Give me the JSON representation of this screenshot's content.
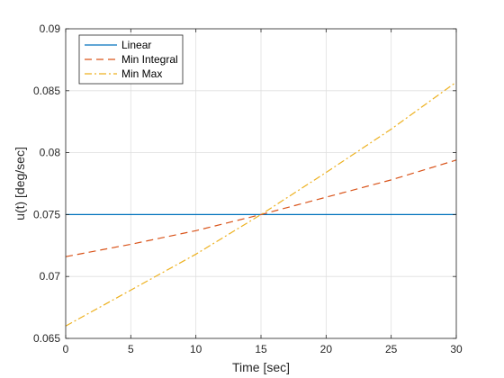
{
  "chart_data": {
    "type": "line",
    "title": "",
    "xlabel": "Time [sec]",
    "ylabel": "u(t) [deg/sec]",
    "xlim": [
      0,
      30
    ],
    "ylim": [
      0.065,
      0.09
    ],
    "xticks": [
      0,
      5,
      10,
      15,
      20,
      25,
      30
    ],
    "yticks": [
      0.065,
      0.07,
      0.075,
      0.08,
      0.085,
      0.09
    ],
    "xtick_labels": [
      "0",
      "5",
      "10",
      "15",
      "20",
      "25",
      "30"
    ],
    "ytick_labels": [
      "0.065",
      "0.07",
      "0.075",
      "0.08",
      "0.085",
      "0.09"
    ],
    "grid": true,
    "legend_position": "top-left",
    "series": [
      {
        "name": "Linear",
        "color": "#0072bd",
        "style": "solid",
        "x": [
          0,
          5,
          10,
          15,
          20,
          25,
          30
        ],
        "y": [
          0.075,
          0.075,
          0.075,
          0.075,
          0.075,
          0.075,
          0.075
        ]
      },
      {
        "name": "Min Integral",
        "color": "#d95319",
        "style": "dashed",
        "x": [
          0,
          5,
          10,
          15,
          20,
          25,
          30
        ],
        "y": [
          0.0716,
          0.0726,
          0.0737,
          0.075,
          0.0764,
          0.0778,
          0.0794
        ]
      },
      {
        "name": "Min Max",
        "color": "#edb120",
        "style": "dashdot",
        "x": [
          0,
          5,
          10,
          15,
          20,
          25,
          30
        ],
        "y": [
          0.066,
          0.0689,
          0.0718,
          0.075,
          0.0784,
          0.0819,
          0.0857
        ]
      }
    ]
  }
}
